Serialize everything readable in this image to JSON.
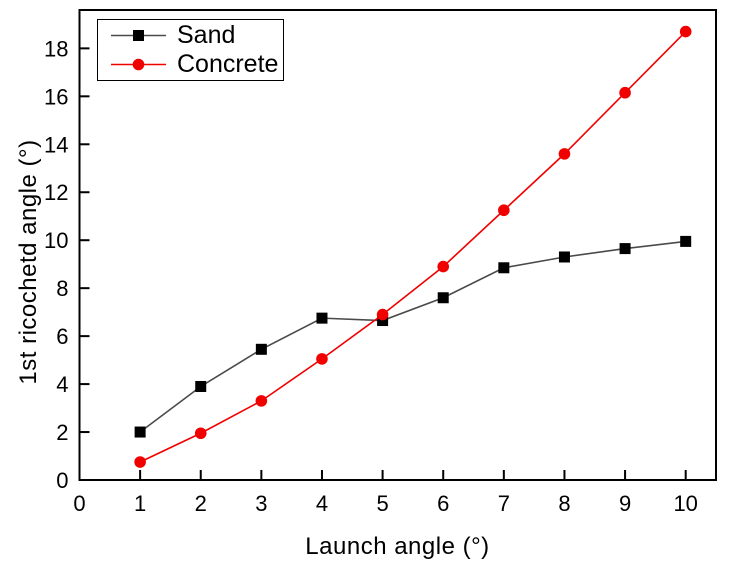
{
  "figure": {
    "background": "#ffffff",
    "frame_color": "#000000",
    "text_color": "#000000"
  },
  "chart_data": {
    "type": "line",
    "title": "",
    "xlabel": "Launch angle (°)",
    "ylabel": "1st ricochetd angle (°)",
    "x": [
      1,
      2,
      3,
      4,
      5,
      6,
      7,
      8,
      9,
      10
    ],
    "series": [
      {
        "name": "Sand",
        "marker": "square",
        "marker_color": "#000000",
        "line_color": "#4a4a4a",
        "values": [
          2.0,
          3.9,
          5.45,
          6.75,
          6.65,
          7.6,
          8.85,
          9.3,
          9.65,
          9.95
        ]
      },
      {
        "name": "Concrete",
        "marker": "circle",
        "marker_color": "#f10000",
        "line_color": "#f10000",
        "values": [
          0.75,
          1.95,
          3.3,
          5.05,
          6.9,
          8.9,
          11.25,
          13.6,
          16.15,
          18.7
        ]
      }
    ],
    "xlim": [
      0,
      10.5
    ],
    "ylim": [
      0,
      19.6
    ],
    "x_ticks": [
      0,
      1,
      2,
      3,
      4,
      5,
      6,
      7,
      8,
      9,
      10
    ],
    "y_ticks": [
      0,
      2,
      4,
      6,
      8,
      10,
      12,
      14,
      16,
      18
    ],
    "grid": false,
    "legend_position": "top-left"
  }
}
